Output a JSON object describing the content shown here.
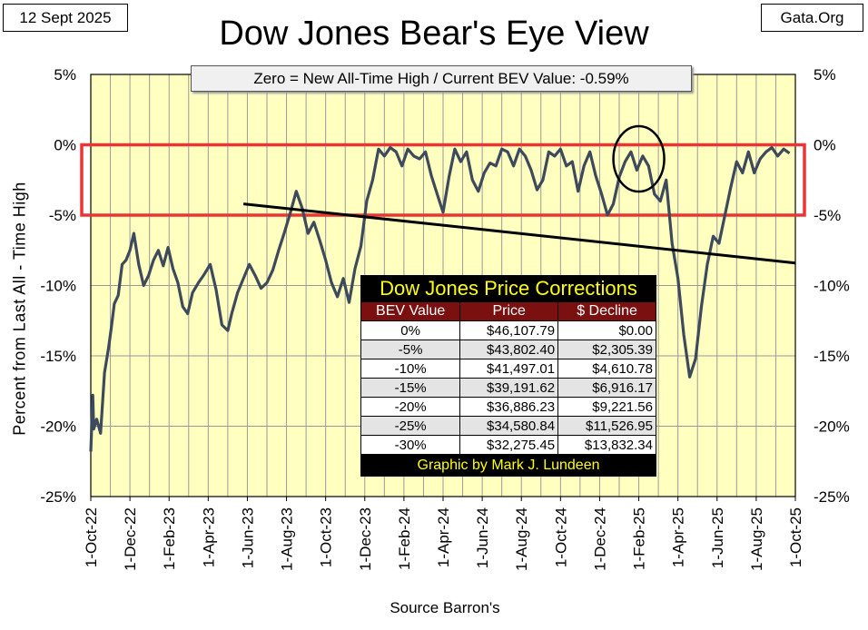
{
  "header": {
    "date": "12 Sept 2025",
    "site": "Gata.Org",
    "title": "Dow Jones Bear's Eye View",
    "subtitle": "Zero = New All-Time High / Current BEV Value:  -0.59%",
    "source": "Source Barron's"
  },
  "chart_data": {
    "type": "line",
    "title": "Dow Jones Bear's Eye View",
    "ylabel": "Percent  from  Last  All - Time  High",
    "xlabel": "Source Barron's",
    "ylim": [
      -25,
      5
    ],
    "yticks": [
      5,
      0,
      -5,
      -10,
      -15,
      -20,
      -25
    ],
    "ytick_labels_left": [
      "5%",
      "0%",
      "-5%",
      "-10%",
      "-15%",
      "-20%",
      "-25%"
    ],
    "ytick_labels_right": [
      "5%",
      "0%",
      "-5%",
      "-10%",
      "-15%",
      "-20%",
      "-25%"
    ],
    "xticks": [
      "1-Oct-22",
      "1-Dec-22",
      "1-Feb-23",
      "1-Apr-23",
      "1-Jun-23",
      "1-Aug-23",
      "1-Oct-23",
      "1-Dec-23",
      "1-Feb-24",
      "1-Apr-24",
      "1-Jun-24",
      "1-Aug-24",
      "1-Oct-24",
      "1-Dec-24",
      "1-Feb-25",
      "1-Apr-25",
      "1-Jun-25",
      "1-Aug-25",
      "1-Oct-25"
    ],
    "series": [
      {
        "name": "Dow Jones BEV",
        "color": "#3d4a5c",
        "x_months": [
          0.0,
          0.1,
          0.15,
          0.3,
          0.5,
          0.7,
          0.9,
          1.05,
          1.2,
          1.4,
          1.6,
          1.8,
          2.0,
          2.2,
          2.45,
          2.7,
          2.95,
          3.2,
          3.45,
          3.7,
          3.95,
          4.2,
          4.45,
          4.7,
          4.95,
          5.2,
          5.5,
          5.8,
          6.1,
          6.4,
          6.7,
          7.0,
          7.2,
          7.5,
          7.8,
          8.1,
          8.4,
          8.7,
          9.0,
          9.3,
          9.6,
          9.9,
          10.2,
          10.5,
          10.8,
          11.1,
          11.4,
          11.7,
          12.0,
          12.3,
          12.6,
          12.9,
          13.2,
          13.5,
          13.8,
          14.1,
          14.4,
          14.7,
          15.0,
          15.3,
          15.6,
          15.9,
          16.2,
          16.5,
          16.8,
          17.1,
          17.4,
          17.7,
          18.0,
          18.3,
          18.6,
          18.9,
          19.2,
          19.5,
          19.8,
          20.1,
          20.4,
          20.7,
          21.0,
          21.3,
          21.6,
          21.9,
          22.2,
          22.5,
          22.8,
          23.1,
          23.4,
          23.7,
          24.0,
          24.3,
          24.6,
          24.9,
          25.2,
          25.5,
          25.8,
          26.1,
          26.4,
          26.7,
          27.0,
          27.3,
          27.6,
          27.9,
          28.2,
          28.5,
          28.8,
          29.1,
          29.4,
          29.7,
          30.0,
          30.3,
          30.6,
          30.9,
          31.2,
          31.5,
          31.8,
          32.1,
          32.4,
          32.7,
          33.0,
          33.3,
          33.6,
          33.9,
          34.2,
          34.5,
          34.8,
          35.1,
          35.4,
          35.7
        ],
        "values": [
          -21.8,
          -17.8,
          -20.2,
          -19.5,
          -20.5,
          -16.2,
          -14.5,
          -13.0,
          -11.3,
          -10.7,
          -8.5,
          -8.2,
          -7.5,
          -6.3,
          -8.5,
          -10.0,
          -9.3,
          -8.2,
          -7.5,
          -8.6,
          -7.3,
          -8.8,
          -9.8,
          -11.5,
          -12.0,
          -10.5,
          -9.8,
          -9.2,
          -8.5,
          -10.3,
          -12.8,
          -13.2,
          -12.0,
          -10.5,
          -9.5,
          -8.5,
          -9.3,
          -10.2,
          -9.8,
          -8.9,
          -7.5,
          -6.2,
          -4.8,
          -3.3,
          -4.5,
          -6.3,
          -5.5,
          -6.8,
          -8.2,
          -9.8,
          -10.8,
          -9.5,
          -11.2,
          -8.8,
          -7.2,
          -4.0,
          -2.5,
          -0.3,
          -0.8,
          -0.2,
          -0.5,
          -1.5,
          -0.3,
          -0.8,
          -1.0,
          -0.5,
          -2.2,
          -3.5,
          -4.8,
          -2.3,
          -0.3,
          -1.2,
          -0.5,
          -2.5,
          -3.3,
          -2.0,
          -1.3,
          -1.5,
          -0.3,
          -0.5,
          -1.5,
          -0.3,
          -0.8,
          -1.8,
          -3.2,
          -2.5,
          -0.5,
          -0.8,
          -0.3,
          -1.5,
          -1.2,
          -3.3,
          -1.5,
          -0.5,
          -2.2,
          -3.5,
          -5.0,
          -4.2,
          -2.3,
          -1.2,
          -0.5,
          -1.8,
          -0.8,
          -1.5,
          -3.5,
          -4.0,
          -2.5,
          -7.0,
          -9.5,
          -13.5,
          -16.5,
          -15.2,
          -11.5,
          -8.5,
          -6.5,
          -7.0,
          -5.0,
          -3.0,
          -1.2,
          -2.0,
          -0.5,
          -2.0,
          -1.0,
          -0.5,
          -0.2,
          -0.8,
          -0.3,
          -0.6
        ]
      }
    ],
    "annotations": {
      "trendline": {
        "x_months": [
          7.8,
          36.0
        ],
        "values": [
          -4.2,
          -8.4
        ],
        "color": "#000000"
      },
      "zone_box": {
        "y_top": 0,
        "y_bottom": -5,
        "color": "#ee3333"
      },
      "circle": {
        "x_month": 28.0,
        "value": -1.0,
        "color": "#000000"
      }
    }
  },
  "table": {
    "title": "Dow Jones Price Corrections",
    "headers": [
      "BEV Value",
      "Price",
      "$ Decline"
    ],
    "rows": [
      [
        "0%",
        "$46,107.79",
        "$0.00"
      ],
      [
        "-5%",
        "$43,802.40",
        "$2,305.39"
      ],
      [
        "-10%",
        "$41,497.01",
        "$4,610.78"
      ],
      [
        "-15%",
        "$39,191.62",
        "$6,916.17"
      ],
      [
        "-20%",
        "$36,886.23",
        "$9,221.56"
      ],
      [
        "-25%",
        "$34,580.84",
        "$11,526.95"
      ],
      [
        "-30%",
        "$32,275.45",
        "$13,832.34"
      ]
    ],
    "footer": "Graphic by Mark J. Lundeen"
  },
  "colors": {
    "plot_bg": "#ffffc0",
    "line": "#3d4a5c",
    "grid": "#9a9a9a",
    "zone_box": "#ee3333"
  }
}
